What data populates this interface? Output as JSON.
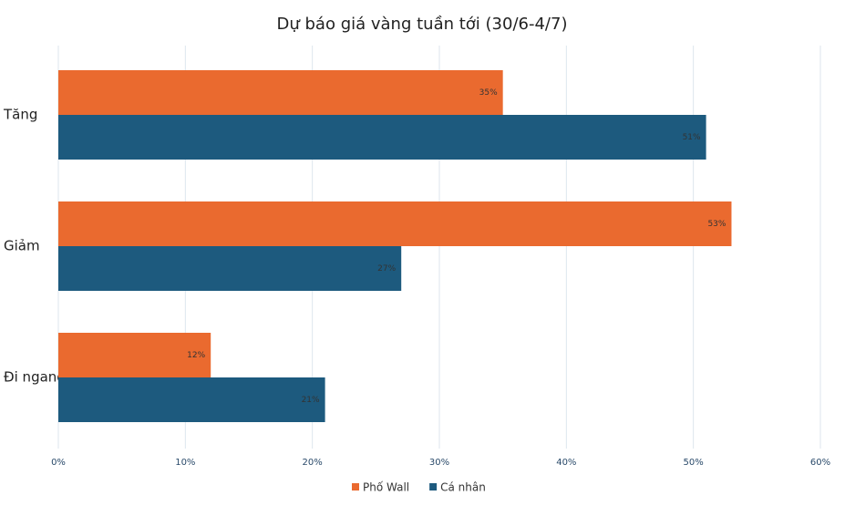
{
  "chart_data": {
    "type": "bar",
    "orientation": "horizontal",
    "title": "Dự báo giá vàng tuần tới (30/6-4/7)",
    "categories": [
      "Tăng",
      "Giảm",
      "Đi ngang"
    ],
    "series": [
      {
        "name": "Phố Wall",
        "color": "#ea6a2f",
        "values": [
          35,
          53,
          12
        ],
        "value_labels": [
          "35%",
          "53%",
          "12%"
        ]
      },
      {
        "name": "Cá nhân",
        "color": "#1d5a7e",
        "values": [
          51,
          27,
          21
        ],
        "value_labels": [
          "51%",
          "27%",
          "21%"
        ]
      }
    ],
    "xlim": [
      0,
      60
    ],
    "xticks": [
      {
        "value": 0,
        "label": "0%"
      },
      {
        "value": 10,
        "label": "10%"
      },
      {
        "value": 20,
        "label": "20%"
      },
      {
        "value": 30,
        "label": "30%"
      },
      {
        "value": 40,
        "label": "40%"
      },
      {
        "value": 50,
        "label": "50%"
      },
      {
        "value": 60,
        "label": "60%"
      }
    ],
    "grid": true
  }
}
